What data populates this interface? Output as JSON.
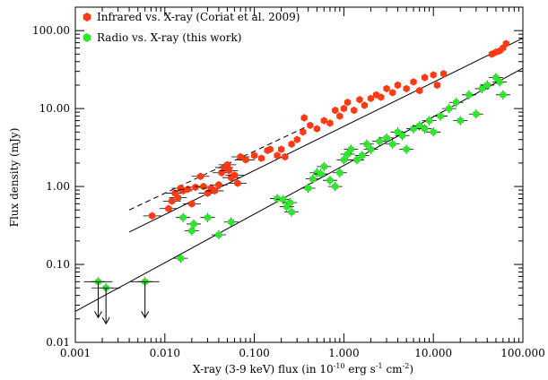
{
  "chart_data": {
    "type": "scatter",
    "xlabel": "X-ray (3-9 keV) flux (in 10^-10 erg s^-1 cm^-2)",
    "ylabel": "Flux density (mJy)",
    "xscale": "log",
    "yscale": "log",
    "xlim": [
      0.001,
      100
    ],
    "ylim": [
      0.01,
      200
    ],
    "x_tick_labels": [
      "0.001",
      "0.010",
      "0.100",
      "1.000",
      "10.000",
      "100.000"
    ],
    "y_tick_labels": [
      "0.01",
      "0.10",
      "1.00",
      "10.00",
      "100.00"
    ],
    "grid": false,
    "legend_position": "top-left",
    "series": [
      {
        "name": "Infrared vs. X-ray (Coriat et al. 2009)",
        "color": "#ff3a14",
        "marker": "hexagon",
        "points": [
          [
            0.0072,
            0.42
          ],
          [
            0.011,
            0.52
          ],
          [
            0.012,
            0.65
          ],
          [
            0.013,
            0.82
          ],
          [
            0.014,
            0.72
          ],
          [
            0.015,
            0.95
          ],
          [
            0.016,
            0.88
          ],
          [
            0.018,
            0.92
          ],
          [
            0.02,
            0.6
          ],
          [
            0.022,
            0.98
          ],
          [
            0.025,
            1.35
          ],
          [
            0.027,
            1.0
          ],
          [
            0.03,
            0.82
          ],
          [
            0.033,
            0.95
          ],
          [
            0.036,
            0.88
          ],
          [
            0.04,
            1.05
          ],
          [
            0.043,
            1.5
          ],
          [
            0.046,
            1.75
          ],
          [
            0.05,
            1.9
          ],
          [
            0.052,
            1.6
          ],
          [
            0.055,
            1.3
          ],
          [
            0.06,
            1.4
          ],
          [
            0.065,
            1.1
          ],
          [
            0.07,
            2.4
          ],
          [
            0.08,
            2.2
          ],
          [
            0.1,
            2.5
          ],
          [
            0.12,
            2.3
          ],
          [
            0.14,
            2.9
          ],
          [
            0.15,
            3.0
          ],
          [
            0.18,
            2.5
          ],
          [
            0.2,
            3.0
          ],
          [
            0.22,
            2.4
          ],
          [
            0.26,
            3.5
          ],
          [
            0.3,
            4.0
          ],
          [
            0.35,
            5.0
          ],
          [
            0.36,
            7.6
          ],
          [
            0.42,
            6.1
          ],
          [
            0.5,
            5.5
          ],
          [
            0.6,
            7.0
          ],
          [
            0.7,
            6.5
          ],
          [
            0.8,
            9.5
          ],
          [
            0.9,
            8.0
          ],
          [
            1.0,
            10.0
          ],
          [
            1.1,
            12.0
          ],
          [
            1.3,
            9.5
          ],
          [
            1.5,
            13.0
          ],
          [
            1.7,
            11.0
          ],
          [
            2.0,
            13.5
          ],
          [
            2.3,
            15.0
          ],
          [
            2.6,
            14.0
          ],
          [
            3.0,
            18.0
          ],
          [
            3.5,
            16.0
          ],
          [
            4.0,
            20.0
          ],
          [
            5.0,
            18.0
          ],
          [
            6.0,
            22.0
          ],
          [
            7.0,
            17.0
          ],
          [
            8.0,
            25.0
          ],
          [
            10.0,
            27.0
          ],
          [
            11.0,
            20.0
          ],
          [
            13.0,
            28.0
          ],
          [
            45.0,
            50.0
          ],
          [
            50.0,
            53.0
          ],
          [
            55.0,
            55.0
          ],
          [
            60.0,
            60.0
          ],
          [
            65.0,
            68.0
          ]
        ]
      },
      {
        "name": "Radio vs. X-ray (this work)",
        "color": "#2ee62e",
        "marker": "hexagon",
        "points": [
          [
            0.0018,
            0.06
          ],
          [
            0.0022,
            0.05
          ],
          [
            0.006,
            0.06
          ],
          [
            0.015,
            0.12
          ],
          [
            0.016,
            0.4
          ],
          [
            0.02,
            0.27
          ],
          [
            0.021,
            0.33
          ],
          [
            0.03,
            0.4
          ],
          [
            0.04,
            0.24
          ],
          [
            0.055,
            0.35
          ],
          [
            0.18,
            0.7
          ],
          [
            0.21,
            0.68
          ],
          [
            0.23,
            0.55
          ],
          [
            0.25,
            0.62
          ],
          [
            0.26,
            0.47
          ],
          [
            0.4,
            0.95
          ],
          [
            0.45,
            1.25
          ],
          [
            0.5,
            1.5
          ],
          [
            0.55,
            1.45
          ],
          [
            0.6,
            1.8
          ],
          [
            0.7,
            1.2
          ],
          [
            0.8,
            1.0
          ],
          [
            0.9,
            1.5
          ],
          [
            1.0,
            2.2
          ],
          [
            1.1,
            2.6
          ],
          [
            1.2,
            3.0
          ],
          [
            1.4,
            2.2
          ],
          [
            1.6,
            2.5
          ],
          [
            1.8,
            3.5
          ],
          [
            2.0,
            3.0
          ],
          [
            2.5,
            3.8
          ],
          [
            3.0,
            4.2
          ],
          [
            3.5,
            3.5
          ],
          [
            4.0,
            5.0
          ],
          [
            4.5,
            4.5
          ],
          [
            5.0,
            3.0
          ],
          [
            6.0,
            5.5
          ],
          [
            7.0,
            6.0
          ],
          [
            8.0,
            5.5
          ],
          [
            9.0,
            7.0
          ],
          [
            10.0,
            5.0
          ],
          [
            12.0,
            8.0
          ],
          [
            15.0,
            10.0
          ],
          [
            18.0,
            12.0
          ],
          [
            20.0,
            7.0
          ],
          [
            25.0,
            15.0
          ],
          [
            30.0,
            8.5
          ],
          [
            35.0,
            18.0
          ],
          [
            40.0,
            20.0
          ],
          [
            50.0,
            25.0
          ],
          [
            55.0,
            22.0
          ],
          [
            60.0,
            15.0
          ]
        ]
      }
    ],
    "fit_lines": [
      {
        "style": "solid",
        "from": [
          0.004,
          0.26
        ],
        "to": [
          100.0,
          80.0
        ]
      },
      {
        "style": "dashed",
        "from": [
          0.004,
          0.5
        ],
        "to": [
          0.4,
          6.0
        ]
      },
      {
        "style": "solid",
        "from": [
          0.001,
          0.025
        ],
        "to": [
          100.0,
          33.0
        ]
      }
    ],
    "upper_limits": [
      {
        "x": 0.0018,
        "y": 0.06
      },
      {
        "x": 0.0022,
        "y": 0.05
      },
      {
        "x": 0.006,
        "y": 0.06
      }
    ]
  },
  "labels": {
    "title_parts": [
      "X-ray (3-9 keV) flux (in 10",
      "-10",
      " erg s",
      "-1",
      " cm",
      "-2",
      ")"
    ]
  }
}
